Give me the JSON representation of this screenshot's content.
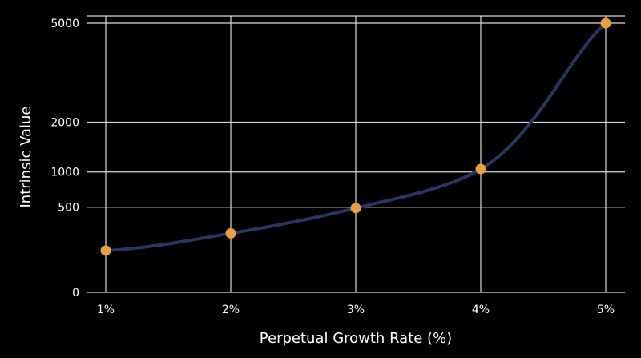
{
  "chart_data": {
    "type": "line",
    "xlabel": "Perpetual Growth Rate (%)",
    "ylabel": "Intrinsic Value",
    "x_ticks": [
      "1%",
      "2%",
      "3%",
      "4%",
      "5%"
    ],
    "y_ticks": [
      "0",
      "500",
      "1000",
      "2000",
      "5000"
    ],
    "x": [
      1,
      2,
      3,
      4,
      5
    ],
    "y": [
      120,
      240,
      490,
      1050,
      5000
    ],
    "ylim": [
      0,
      5000
    ],
    "y_scale": "square-root",
    "xlim": [
      1,
      5
    ],
    "grid": true,
    "colors": {
      "background": "#000000",
      "line": "#2a3560",
      "marker": "#e8a040",
      "grid": "#d9d9d9",
      "text": "#ffffff"
    }
  }
}
